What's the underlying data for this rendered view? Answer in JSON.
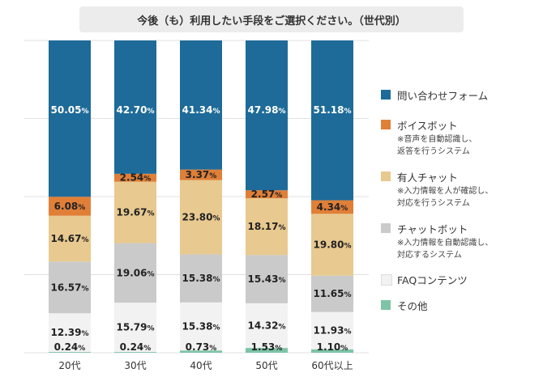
{
  "chart_data": {
    "type": "bar",
    "stacked": true,
    "title": "今後（も）利用したい手段をご選択ください。（世代別）",
    "categories": [
      "20代",
      "30代",
      "40代",
      "50代",
      "60代以上"
    ],
    "series": [
      {
        "name": "その他",
        "color": "#7dc4a6",
        "values": [
          0.24,
          0.24,
          0.73,
          1.53,
          1.1
        ]
      },
      {
        "name": "FAQコンテンツ",
        "color": "#f2f2f2",
        "values": [
          12.39,
          15.79,
          15.38,
          14.32,
          11.93
        ]
      },
      {
        "name": "チャットボット",
        "color": "#cacaca",
        "values": [
          16.57,
          19.06,
          15.38,
          15.43,
          11.65
        ]
      },
      {
        "name": "有人チャット",
        "color": "#e8c98f",
        "values": [
          14.67,
          19.67,
          23.8,
          18.17,
          19.8
        ]
      },
      {
        "name": "ボイスボット",
        "color": "#e07f38",
        "values": [
          6.08,
          2.54,
          3.37,
          2.57,
          4.34
        ]
      },
      {
        "name": "問い合わせフォーム",
        "color": "#1e6b99",
        "values": [
          50.05,
          42.7,
          41.34,
          47.98,
          51.18
        ]
      }
    ],
    "labels": [
      [
        "0.24",
        "12.39",
        "16.57",
        "14.67",
        "6.08",
        "50.05"
      ],
      [
        "0.24",
        "15.79",
        "19.06",
        "19.67",
        "2.54",
        "42.70"
      ],
      [
        "0.73",
        "15.38",
        "15.38",
        "23.80",
        "3.37",
        "41.34"
      ],
      [
        "1.53",
        "14.32",
        "15.43",
        "18.17",
        "2.57",
        "47.98"
      ],
      [
        "1.10",
        "11.93",
        "11.65",
        "19.80",
        "4.34",
        "51.18"
      ]
    ],
    "label_unit": "%",
    "ylim": [
      0,
      100
    ],
    "grid": true
  },
  "legend": [
    {
      "label": "問い合わせフォーム",
      "color": "#1e6b99",
      "note": ""
    },
    {
      "label": "ボイスボット",
      "color": "#e07f38",
      "note": "※音声を自動認識し、\n返答を行うシステム"
    },
    {
      "label": "有人チャット",
      "color": "#e8c98f",
      "note": "※入力情報を人が確認し、\n対応を行うシステム"
    },
    {
      "label": "チャットボット",
      "color": "#cacaca",
      "note": "※入力情報を自動認識し、\n対応するシステム"
    },
    {
      "label": "FAQコンテンツ",
      "color": "#f2f2f2",
      "note": ""
    },
    {
      "label": "その他",
      "color": "#7dc4a6",
      "note": ""
    }
  ]
}
